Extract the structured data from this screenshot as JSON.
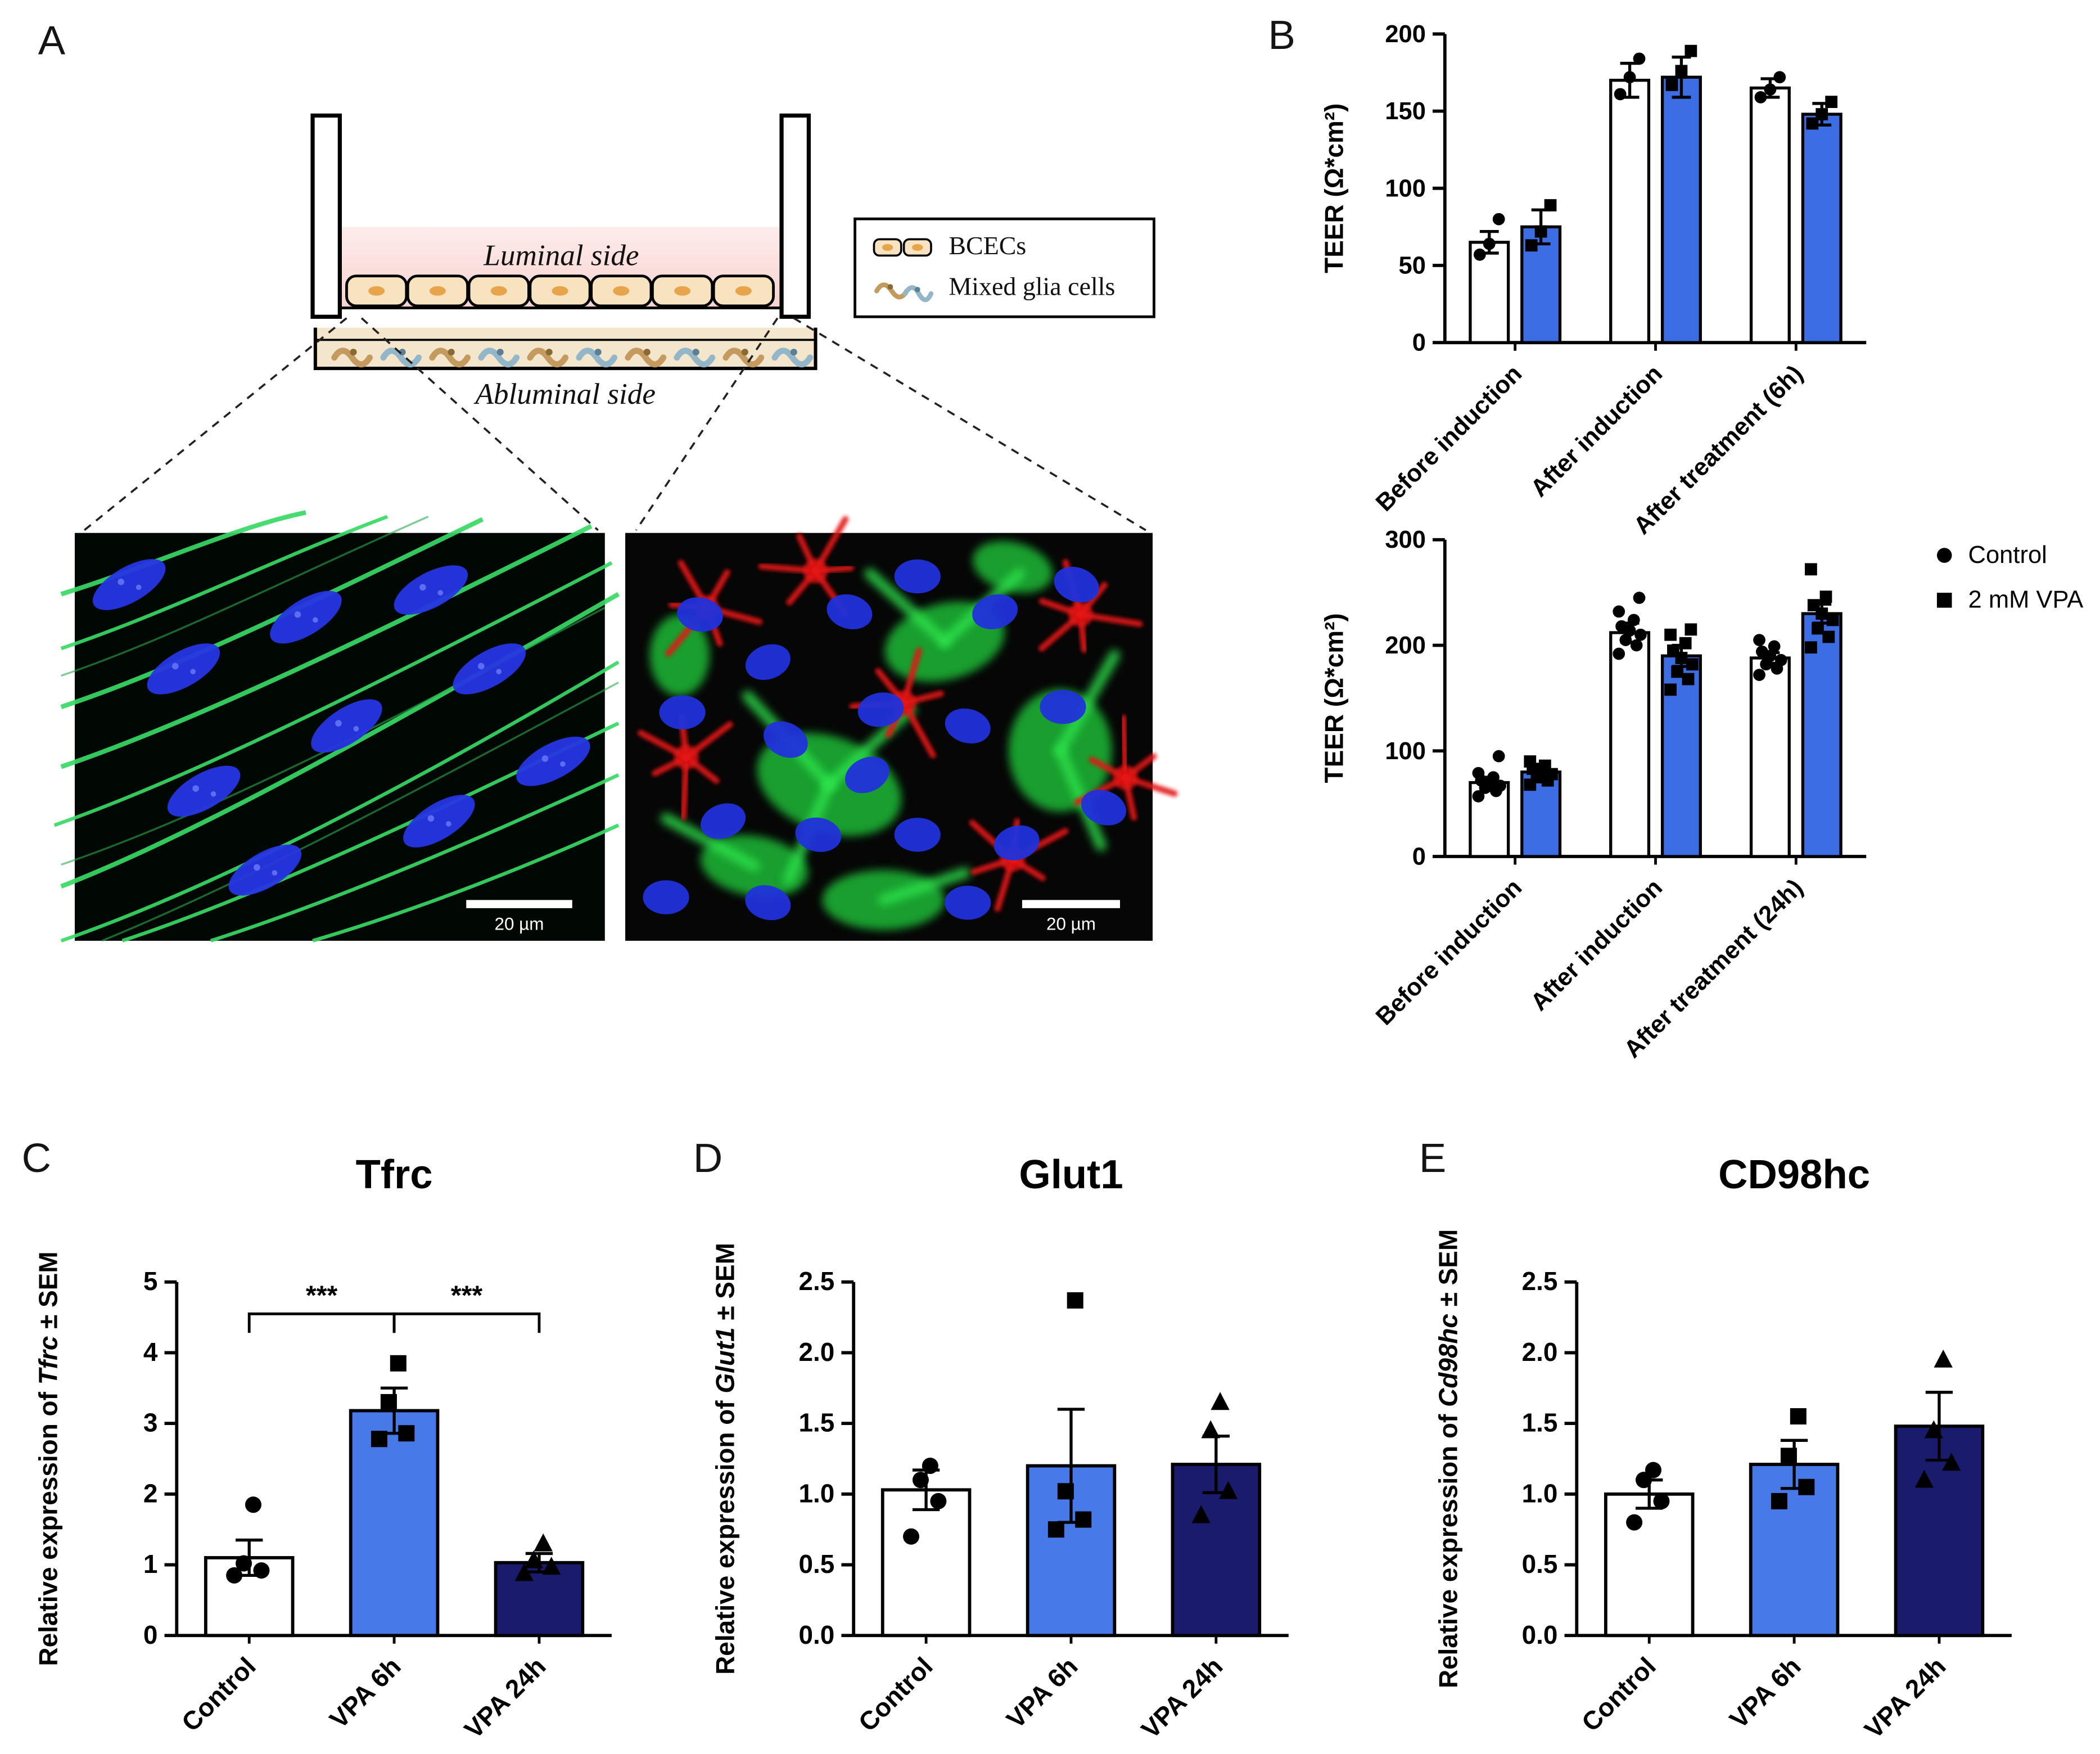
{
  "panel_labels": {
    "A": "A",
    "B": "B",
    "C": "C",
    "D": "D",
    "E": "E"
  },
  "panel_a": {
    "luminal_label": "Luminal side",
    "abluminal_label": "Abluminal side",
    "legend": {
      "bcecs": "BCECs",
      "glia": "Mixed glia cells"
    },
    "micrographs": {
      "left_scale_bar": "20 µm",
      "right_scale_bar": "20 µm"
    }
  },
  "panel_b_legend": {
    "control": "Control",
    "vpa": "2 mM VPA"
  },
  "colors": {
    "vpa_blue": "#3D6DE3",
    "mid_blue": "#477AE8",
    "navy": "#1B1B6E"
  },
  "chart_data": [
    {
      "id": "teer-6h",
      "type": "bar",
      "panel": "B",
      "ylabel": "TEER (Ω*cm²)",
      "ylim": [
        0,
        200
      ],
      "yticks": [
        0,
        50,
        100,
        150,
        200
      ],
      "categories": [
        "Before induction",
        "After induction",
        "After treatment (6h)"
      ],
      "series": [
        {
          "name": "Control",
          "color": "#FFFFFF",
          "marker": "circle",
          "values": [
            65,
            170,
            165
          ],
          "sem": [
            7,
            11,
            6
          ],
          "points": [
            [
              57,
              64,
              80
            ],
            [
              161,
              172,
              184
            ],
            [
              159,
              164,
              172
            ]
          ]
        },
        {
          "name": "2 mM VPA",
          "color": "#3D6DE3",
          "marker": "square",
          "values": [
            75,
            172,
            148
          ],
          "sem": [
            11,
            13,
            7
          ],
          "points": [
            [
              63,
              72,
              89
            ],
            [
              167,
              176,
              189
            ],
            [
              142,
              148,
              156
            ]
          ]
        }
      ]
    },
    {
      "id": "teer-24h",
      "type": "bar",
      "panel": "B",
      "ylabel": "TEER (Ω*cm²)",
      "ylim": [
        0,
        300
      ],
      "yticks": [
        0,
        100,
        200,
        300
      ],
      "categories": [
        "Before induction",
        "After induction",
        "After treatment (24h)"
      ],
      "series": [
        {
          "name": "Control",
          "color": "#FFFFFF",
          "marker": "circle",
          "values": [
            70,
            212,
            188
          ],
          "sem": [
            5,
            9,
            5
          ],
          "points": [
            [
              57,
              62,
              65,
              67,
              70,
              72,
              75,
              79,
              95
            ],
            [
              192,
              200,
              205,
              210,
              214,
              218,
              224,
              232,
              245
            ],
            [
              172,
              178,
              182,
              186,
              190,
              194,
              199,
              205
            ]
          ]
        },
        {
          "name": "2 mM VPA",
          "color": "#3D6DE3",
          "marker": "square",
          "values": [
            80,
            190,
            230
          ],
          "sem": [
            4,
            10,
            9
          ],
          "points": [
            [
              68,
              72,
              75,
              78,
              80,
              83,
              86,
              90
            ],
            [
              158,
              168,
              175,
              182,
              188,
              195,
              202,
              210,
              215
            ],
            [
              198,
              208,
              216,
              224,
              230,
              238,
              246,
              272
            ]
          ]
        }
      ]
    },
    {
      "id": "tfrc",
      "type": "bar",
      "panel": "C",
      "title": "Tfrc",
      "ylabel_parts": {
        "prefix": "Relative expression of ",
        "gene": "Tfrc",
        "suffix": " ± SEM"
      },
      "ylim": [
        0,
        5
      ],
      "yticks": [
        0,
        1,
        2,
        3,
        4,
        5
      ],
      "categories": [
        "Control",
        "VPA 6h",
        "VPA 24h"
      ],
      "bars": [
        {
          "value": 1.1,
          "sem": 0.25,
          "color": "#FFFFFF",
          "marker": "circle",
          "points": [
            0.85,
            0.92,
            1.02,
            1.85
          ]
        },
        {
          "value": 3.18,
          "sem": 0.32,
          "color": "#477AE8",
          "marker": "square",
          "points": [
            2.78,
            2.86,
            3.3,
            3.85
          ]
        },
        {
          "value": 1.03,
          "sem": 0.13,
          "color": "#1B1B6E",
          "marker": "triangle",
          "points": [
            0.88,
            0.97,
            1.06,
            1.3
          ]
        }
      ],
      "significance": [
        {
          "from": 0,
          "to": 1,
          "label": "***",
          "y": 4.55
        },
        {
          "from": 1,
          "to": 2,
          "label": "***",
          "y": 4.55
        }
      ]
    },
    {
      "id": "glut1",
      "type": "bar",
      "panel": "D",
      "title": "Glut1",
      "ylabel_parts": {
        "prefix": "Relative expression of ",
        "gene": "Glut1",
        "suffix": " ± SEM"
      },
      "ylim": [
        0,
        2.5
      ],
      "yticks": [
        0,
        0.5,
        1,
        1.5,
        2,
        2.5
      ],
      "ytick_labels": [
        "0.0",
        "0.5",
        "1.0",
        "1.5",
        "2.0",
        "2.5"
      ],
      "categories": [
        "Control",
        "VPA 6h",
        "VPA 24h"
      ],
      "bars": [
        {
          "value": 1.03,
          "sem": 0.14,
          "color": "#FFFFFF",
          "marker": "circle",
          "points": [
            0.7,
            0.95,
            1.1,
            1.2
          ]
        },
        {
          "value": 1.2,
          "sem": 0.4,
          "color": "#477AE8",
          "marker": "square",
          "points": [
            0.75,
            0.82,
            1.02,
            2.37
          ]
        },
        {
          "value": 1.21,
          "sem": 0.2,
          "color": "#1B1B6E",
          "marker": "triangle",
          "points": [
            0.85,
            1.02,
            1.45,
            1.65
          ]
        }
      ]
    },
    {
      "id": "cd98hc",
      "type": "bar",
      "panel": "E",
      "title": "CD98hc",
      "ylabel_parts": {
        "prefix": "Relative expression of ",
        "gene": "Cd98hc",
        "suffix": " ± SEM"
      },
      "ylim": [
        0,
        2.5
      ],
      "yticks": [
        0,
        0.5,
        1,
        1.5,
        2,
        2.5
      ],
      "ytick_labels": [
        "0.0",
        "0.5",
        "1.0",
        "1.5",
        "2.0",
        "2.5"
      ],
      "categories": [
        "Control",
        "VPA 6h",
        "VPA 24h"
      ],
      "bars": [
        {
          "value": 1.0,
          "sem": 0.1,
          "color": "#FFFFFF",
          "marker": "circle",
          "points": [
            0.8,
            0.95,
            1.1,
            1.17
          ]
        },
        {
          "value": 1.21,
          "sem": 0.17,
          "color": "#477AE8",
          "marker": "square",
          "points": [
            0.95,
            1.05,
            1.27,
            1.55
          ]
        },
        {
          "value": 1.48,
          "sem": 0.24,
          "color": "#1B1B6E",
          "marker": "triangle",
          "points": [
            1.1,
            1.22,
            1.45,
            1.95
          ]
        }
      ]
    }
  ]
}
